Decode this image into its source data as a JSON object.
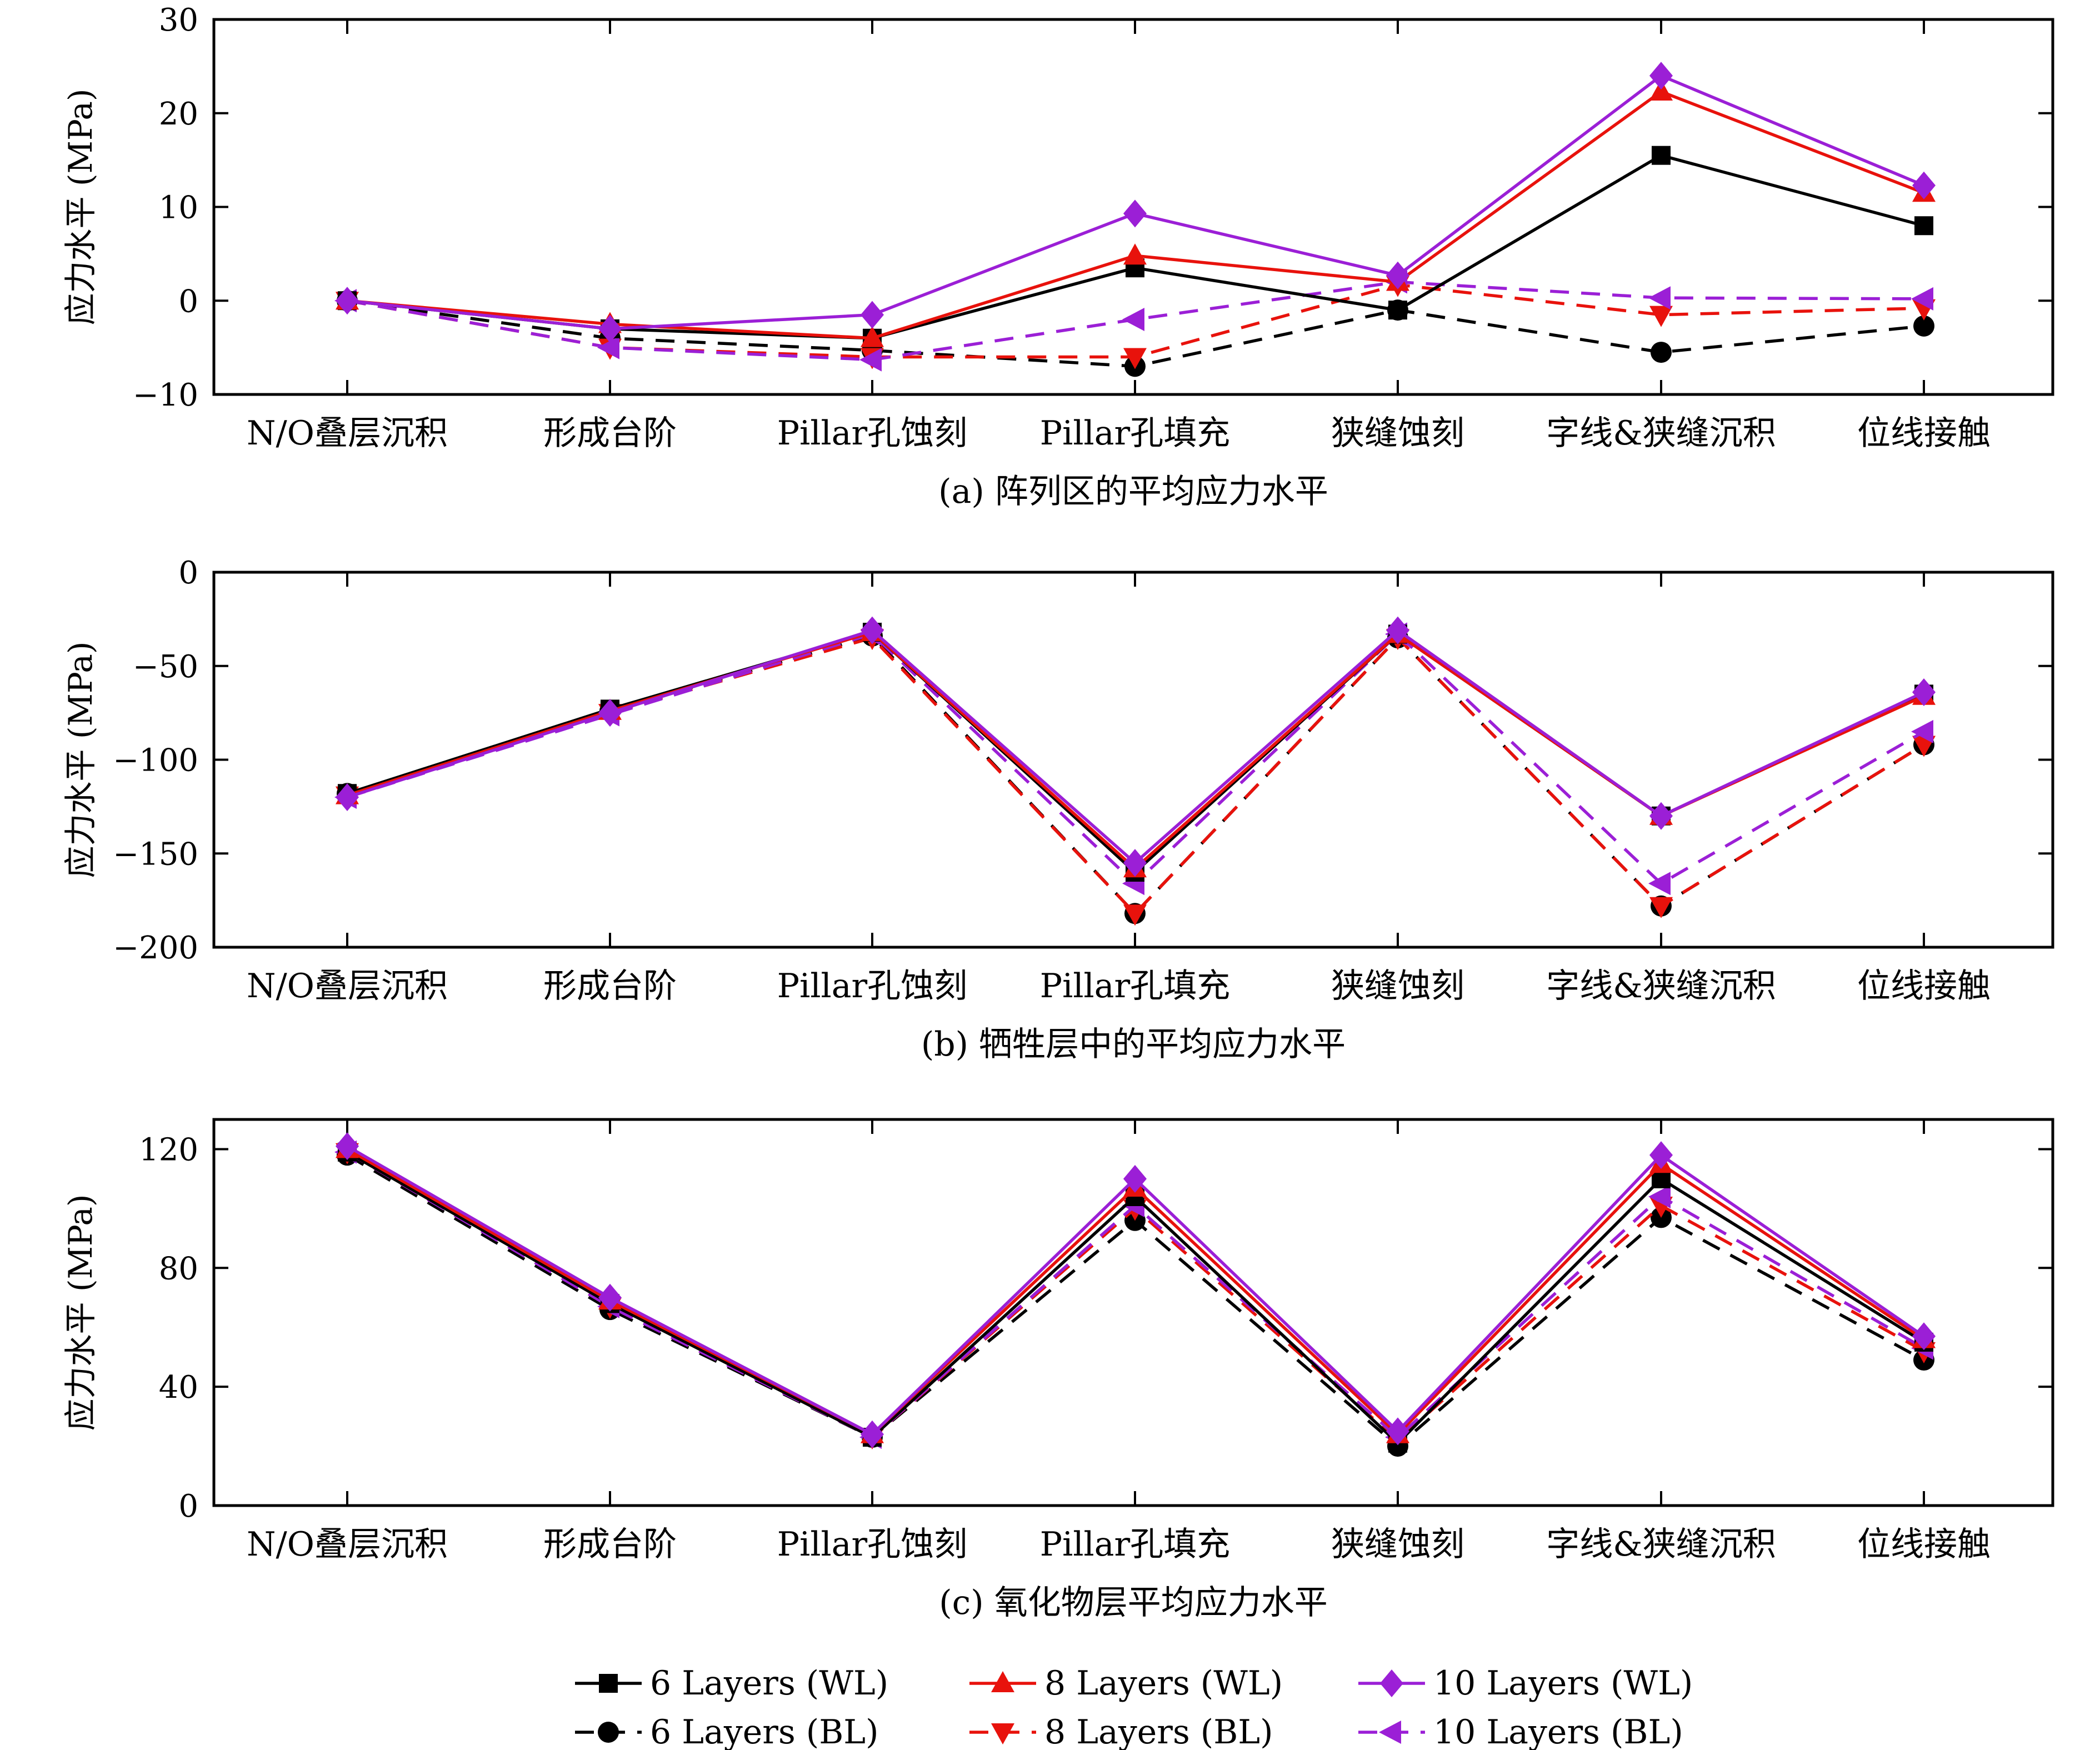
{
  "series_styles": [
    {
      "key": "wl6",
      "name": "6 Layers (WL)",
      "color": "#000000",
      "dashed": false,
      "marker": "square"
    },
    {
      "key": "bl6",
      "name": "6 Layers (BL)",
      "color": "#000000",
      "dashed": true,
      "marker": "circle"
    },
    {
      "key": "wl8",
      "name": "8 Layers (WL)",
      "color": "#e8120c",
      "dashed": false,
      "marker": "triangle-up"
    },
    {
      "key": "bl8",
      "name": "8 Layers (BL)",
      "color": "#e8120c",
      "dashed": true,
      "marker": "triangle-down"
    },
    {
      "key": "wl10",
      "name": "10 Layers (WL)",
      "color": "#9b1fd6",
      "dashed": false,
      "marker": "diamond"
    },
    {
      "key": "bl10",
      "name": "10 Layers (BL)",
      "color": "#9b1fd6",
      "dashed": true,
      "marker": "triangle-left"
    }
  ],
  "chart_data": [
    {
      "type": "line",
      "caption": "(a) 阵列区的平均应力水平",
      "ylabel": "应力水平 (MPa)",
      "ylim": [
        -10,
        30
      ],
      "yticks": [
        -10,
        0,
        10,
        20,
        30
      ],
      "ytick_labels": [
        "−10",
        "0",
        "10",
        "20",
        "30"
      ],
      "categories": [
        "N/O叠层沉积",
        "形成台阶",
        "Pillar孔蚀刻",
        "Pillar孔填充",
        "狭缝蚀刻",
        "字线&狭缝沉积",
        "位线接触"
      ],
      "series": [
        {
          "name": "6 Layers (WL)",
          "values": [
            0,
            -3,
            -4,
            3.5,
            -1,
            15.5,
            8
          ]
        },
        {
          "name": "8 Layers (WL)",
          "values": [
            0,
            -2.5,
            -4,
            4.8,
            2,
            22.3,
            11.5
          ]
        },
        {
          "name": "10 Layers (WL)",
          "values": [
            0,
            -3,
            -1.5,
            9.3,
            2.7,
            24,
            12.3
          ]
        },
        {
          "name": "6 Layers (BL)",
          "values": [
            0,
            -4,
            -5.3,
            -7,
            -1,
            -5.5,
            -2.7
          ]
        },
        {
          "name": "8 Layers (BL)",
          "values": [
            0,
            -5,
            -6,
            -6,
            1.7,
            -1.5,
            -0.8
          ]
        },
        {
          "name": "10 Layers (BL)",
          "values": [
            0,
            -5,
            -6.3,
            -2,
            2,
            0.3,
            0.2
          ]
        }
      ]
    },
    {
      "type": "line",
      "caption": "(b) 牺牲层中的平均应力水平",
      "ylabel": "应力水平 (MPa)",
      "ylim": [
        -200,
        0
      ],
      "yticks": [
        -200,
        -150,
        -100,
        -50,
        0
      ],
      "ytick_labels": [
        "−200",
        "−150",
        "−100",
        "−50",
        "0"
      ],
      "categories": [
        "N/O叠层沉积",
        "形成台阶",
        "Pillar孔蚀刻",
        "Pillar孔填充",
        "狭缝蚀刻",
        "字线&狭缝沉积",
        "位线接触"
      ],
      "series": [
        {
          "name": "6 Layers (WL)",
          "values": [
            -118,
            -73,
            -32,
            -160,
            -33,
            -130,
            -65
          ]
        },
        {
          "name": "8 Layers (WL)",
          "values": [
            -119,
            -74,
            -32,
            -158,
            -33,
            -130,
            -66
          ]
        },
        {
          "name": "10 Layers (WL)",
          "values": [
            -120,
            -75,
            -31,
            -155,
            -31,
            -130,
            -64
          ]
        },
        {
          "name": "6 Layers (BL)",
          "values": [
            -118,
            -74,
            -34,
            -182,
            -35,
            -178,
            -92
          ]
        },
        {
          "name": "8 Layers (BL)",
          "values": [
            -119,
            -75,
            -35,
            -182,
            -35,
            -178,
            -92
          ]
        },
        {
          "name": "10 Layers (BL)",
          "values": [
            -120,
            -76,
            -33,
            -166,
            -33,
            -166,
            -85
          ]
        }
      ]
    },
    {
      "type": "line",
      "caption": "(c) 氧化物层平均应力水平",
      "ylabel": "应力水平 (MPa)",
      "ylim": [
        0,
        130
      ],
      "yticks": [
        0,
        40,
        80,
        120
      ],
      "ytick_labels": [
        "0",
        "40",
        "80",
        "120"
      ],
      "categories": [
        "N/O叠层沉积",
        "形成台阶",
        "Pillar孔蚀刻",
        "Pillar孔填充",
        "狭缝蚀刻",
        "字线&狭缝沉积",
        "位线接触"
      ],
      "series": [
        {
          "name": "6 Layers (WL)",
          "values": [
            119,
            68,
            23,
            104,
            21,
            110,
            55
          ]
        },
        {
          "name": "8 Layers (WL)",
          "values": [
            120,
            69,
            24,
            107,
            24,
            115,
            56
          ]
        },
        {
          "name": "10 Layers (WL)",
          "values": [
            121,
            70,
            24,
            110,
            25,
            118,
            57
          ]
        },
        {
          "name": "6 Layers (BL)",
          "values": [
            118,
            66,
            23,
            96,
            20,
            97,
            49
          ]
        },
        {
          "name": "8 Layers (BL)",
          "values": [
            119,
            67,
            23,
            100,
            22,
            101,
            52
          ]
        },
        {
          "name": "10 Layers (BL)",
          "values": [
            119,
            67,
            23,
            101,
            23,
            104,
            53
          ]
        }
      ]
    }
  ]
}
